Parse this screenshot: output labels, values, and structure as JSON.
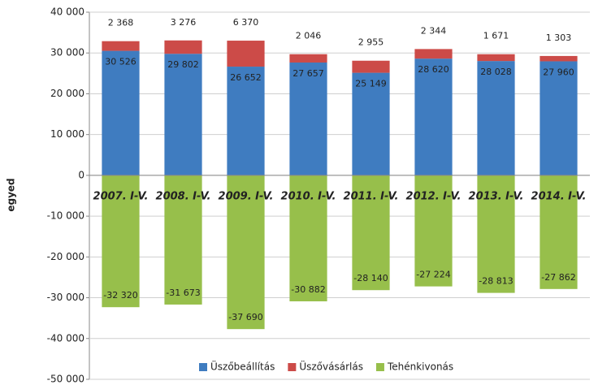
{
  "chart_data": {
    "type": "bar",
    "stacked": true,
    "y_label": "egyed",
    "categories": [
      "2007. I-V.",
      "2008. I-V.",
      "2009. I-V.",
      "2010. I-V.",
      "2011. I-V.",
      "2012. I-V.",
      "2013. I-V.",
      "2014. I-V."
    ],
    "series": [
      {
        "name": "Üszőbeállítás",
        "color": "#3f7cc0",
        "values": [
          30526,
          29802,
          26652,
          27657,
          25149,
          28620,
          28028,
          27960
        ],
        "value_labels": [
          "30 526",
          "29 802",
          "26 652",
          "27 657",
          "25 149",
          "28 620",
          "28 028",
          "27 960"
        ]
      },
      {
        "name": "Üszővásárlás",
        "color": "#cc4b48",
        "values": [
          2368,
          3276,
          6370,
          2046,
          2955,
          2344,
          1671,
          1303
        ],
        "value_labels": [
          "2 368",
          "3 276",
          "6 370",
          "2 046",
          "2 955",
          "2 344",
          "1 671",
          "1 303"
        ]
      },
      {
        "name": "Tehénkivonás",
        "color": "#97bf4b",
        "values": [
          -32320,
          -31673,
          -37690,
          -30882,
          -28140,
          -27224,
          -28813,
          -27862
        ],
        "value_labels": [
          "-32 320",
          "-31 673",
          "-37 690",
          "-30 882",
          "-28 140",
          "-27 224",
          "-28 813",
          "-27 862"
        ]
      }
    ],
    "ylim": [
      -50000,
      40000
    ],
    "yticks": [
      {
        "value": -50000,
        "label": "-50 000"
      },
      {
        "value": -40000,
        "label": "-40 000"
      },
      {
        "value": -30000,
        "label": "-30 000"
      },
      {
        "value": -20000,
        "label": "-20 000"
      },
      {
        "value": -10000,
        "label": "-10 000"
      },
      0,
      {
        "value": 10000,
        "label": "10 000"
      },
      {
        "value": 20000,
        "label": "20 000"
      },
      {
        "value": 30000,
        "label": "30 000"
      },
      {
        "value": 40000,
        "label": "40 000"
      }
    ],
    "grid": true,
    "legend": "bottom"
  }
}
